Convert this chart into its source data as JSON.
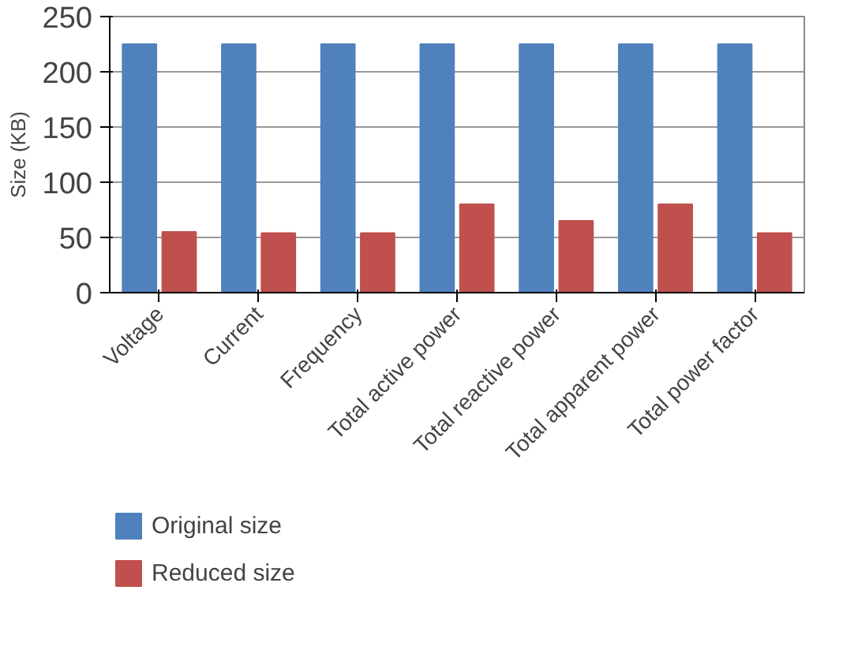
{
  "chart_data": {
    "type": "bar",
    "ylabel": "Size (KB)",
    "categories": [
      "Voltage",
      "Current",
      "Frequency",
      "Total active power",
      "Total reactive power",
      "Total apparent power",
      "Total power factor"
    ],
    "series": [
      {
        "name": "Original size",
        "color": "#4f81bd",
        "values": [
          225,
          225,
          225,
          225,
          225,
          225,
          225
        ]
      },
      {
        "name": "Reduced size",
        "color": "#c0504d",
        "values": [
          55,
          54,
          54,
          80,
          65,
          80,
          54
        ]
      }
    ],
    "ylim": [
      0,
      250
    ],
    "yticks": [
      0,
      50,
      100,
      150,
      200,
      250
    ],
    "grid": "y",
    "legend": "bottom left"
  }
}
